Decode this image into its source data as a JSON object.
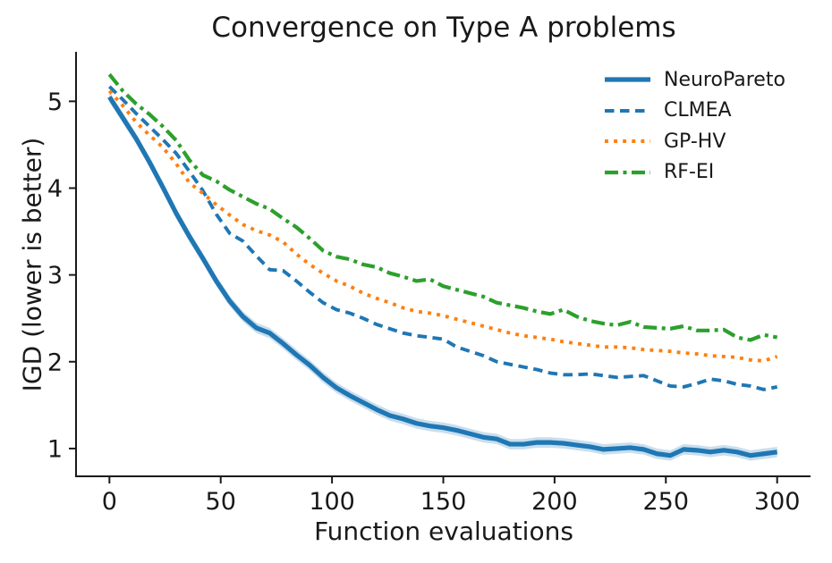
{
  "figure": {
    "background": "#ffffff"
  },
  "chart_data": {
    "type": "line",
    "title": "Convergence on Type A problems",
    "xlabel": "Function evaluations",
    "ylabel": "IGD (lower is better)",
    "xlim": [
      -15,
      315
    ],
    "ylim": [
      0.68,
      5.57
    ],
    "xticks": [
      0,
      50,
      100,
      150,
      200,
      250,
      300
    ],
    "yticks": [
      1,
      2,
      3,
      4,
      5
    ],
    "grid": false,
    "legend_position": "upper right",
    "axis_color": "#1a1a1a",
    "text_color": "#191919",
    "band_opacity": 0.24,
    "x": [
      0,
      6,
      12,
      18,
      24,
      30,
      36,
      42,
      48,
      54,
      60,
      66,
      72,
      78,
      84,
      90,
      96,
      102,
      108,
      114,
      120,
      126,
      132,
      138,
      144,
      150,
      156,
      162,
      168,
      174,
      180,
      186,
      192,
      198,
      204,
      210,
      216,
      222,
      228,
      234,
      240,
      246,
      252,
      258,
      264,
      270,
      276,
      282,
      288,
      294,
      300
    ],
    "series": [
      {
        "name": "NeuroPareto",
        "color": "#1f77b4",
        "style": "solid",
        "linewidth": 5.2,
        "band": 0.06,
        "values": [
          5.05,
          4.81,
          4.57,
          4.3,
          4.01,
          3.71,
          3.44,
          3.19,
          2.93,
          2.7,
          2.52,
          2.39,
          2.33,
          2.21,
          2.08,
          1.96,
          1.82,
          1.7,
          1.61,
          1.53,
          1.45,
          1.38,
          1.34,
          1.29,
          1.26,
          1.24,
          1.21,
          1.17,
          1.13,
          1.11,
          1.05,
          1.05,
          1.07,
          1.07,
          1.06,
          1.04,
          1.02,
          0.99,
          1.0,
          1.01,
          0.99,
          0.94,
          0.92,
          0.99,
          0.98,
          0.96,
          0.98,
          0.96,
          0.92,
          0.94,
          0.96
        ]
      },
      {
        "name": "CLMEA",
        "color": "#1f77b4",
        "style": "dashed",
        "linewidth": 3.9,
        "values": [
          5.17,
          5.02,
          4.86,
          4.71,
          4.56,
          4.4,
          4.19,
          3.97,
          3.7,
          3.48,
          3.39,
          3.22,
          3.06,
          3.05,
          2.93,
          2.8,
          2.68,
          2.6,
          2.56,
          2.5,
          2.43,
          2.38,
          2.33,
          2.3,
          2.28,
          2.26,
          2.17,
          2.12,
          2.07,
          2.0,
          1.97,
          1.94,
          1.91,
          1.87,
          1.85,
          1.85,
          1.86,
          1.84,
          1.82,
          1.83,
          1.84,
          1.78,
          1.72,
          1.71,
          1.75,
          1.8,
          1.78,
          1.74,
          1.72,
          1.68,
          1.71
        ]
      },
      {
        "name": "GP-HV",
        "color": "#ff7f0e",
        "style": "dotted",
        "linewidth": 3.9,
        "values": [
          5.12,
          4.95,
          4.76,
          4.61,
          4.47,
          4.28,
          4.06,
          3.94,
          3.81,
          3.69,
          3.58,
          3.51,
          3.46,
          3.38,
          3.24,
          3.12,
          3.02,
          2.93,
          2.87,
          2.79,
          2.73,
          2.68,
          2.62,
          2.58,
          2.56,
          2.53,
          2.49,
          2.45,
          2.41,
          2.37,
          2.33,
          2.3,
          2.28,
          2.26,
          2.23,
          2.21,
          2.19,
          2.17,
          2.17,
          2.16,
          2.14,
          2.13,
          2.12,
          2.1,
          2.09,
          2.07,
          2.06,
          2.05,
          2.02,
          2.01,
          2.06
        ]
      },
      {
        "name": "RF-EI",
        "color": "#2ca02c",
        "style": "dashdot",
        "linewidth": 4.2,
        "values": [
          5.31,
          5.12,
          4.97,
          4.85,
          4.71,
          4.55,
          4.32,
          4.15,
          4.08,
          3.98,
          3.9,
          3.82,
          3.76,
          3.65,
          3.55,
          3.42,
          3.28,
          3.21,
          3.18,
          3.12,
          3.09,
          3.02,
          2.98,
          2.93,
          2.95,
          2.87,
          2.83,
          2.79,
          2.75,
          2.68,
          2.65,
          2.62,
          2.58,
          2.55,
          2.6,
          2.52,
          2.47,
          2.44,
          2.42,
          2.46,
          2.4,
          2.39,
          2.38,
          2.41,
          2.36,
          2.36,
          2.37,
          2.28,
          2.25,
          2.31,
          2.28
        ]
      }
    ]
  }
}
